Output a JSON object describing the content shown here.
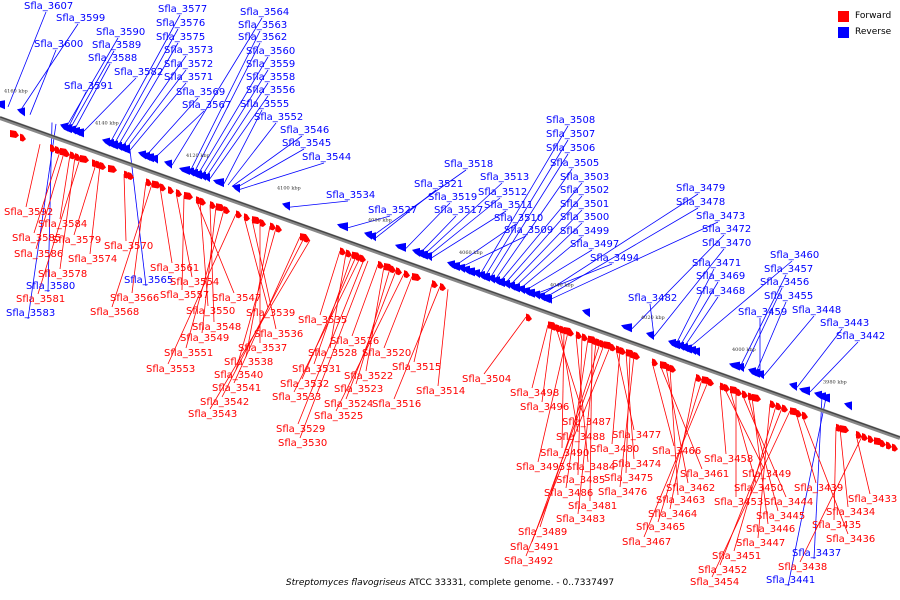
{
  "caption": {
    "organism": "Streptomyces flavogriseus",
    "rest": " ATCC 33331, complete genome. - 0..7337497"
  },
  "legend": {
    "forward_label": "Forward",
    "reverse_label": "Reverse",
    "forward_color": "#ff0000",
    "reverse_color": "#0000ff"
  },
  "ticks": [
    {
      "kbp": 4160,
      "label": "4160 kbp"
    },
    {
      "kbp": 4140,
      "label": "4140 kbp"
    },
    {
      "kbp": 4120,
      "label": "4120 kbp"
    },
    {
      "kbp": 4100,
      "label": "4100 kbp"
    },
    {
      "kbp": 4080,
      "label": "4080 kbp"
    },
    {
      "kbp": 4060,
      "label": "4060 kbp"
    },
    {
      "kbp": 4040,
      "label": "4040 kbp"
    },
    {
      "kbp": 4020,
      "label": "4020 kbp"
    },
    {
      "kbp": 4000,
      "label": "4000 kbp"
    },
    {
      "kbp": 3980,
      "label": "3980 kbp"
    }
  ],
  "reverse_genes": [
    "Sfla_3607",
    "Sfla_3599",
    "Sfla_3600",
    "Sfla_3590",
    "Sfla_3589",
    "Sfla_3588",
    "Sfla_3582",
    "Sfla_3591",
    "Sfla_3577",
    "Sfla_3576",
    "Sfla_3575",
    "Sfla_3573",
    "Sfla_3572",
    "Sfla_3571",
    "Sfla_3569",
    "Sfla_3567",
    "Sfla_3564",
    "Sfla_3563",
    "Sfla_3562",
    "Sfla_3560",
    "Sfla_3559",
    "Sfla_3558",
    "Sfla_3556",
    "Sfla_3555",
    "Sfla_3552",
    "Sfla_3546",
    "Sfla_3545",
    "Sfla_3544",
    "Sfla_3534",
    "Sfla_3527",
    "Sfla_3518",
    "Sfla_3521",
    "Sfla_3519",
    "Sfla_3517",
    "Sfla_3513",
    "Sfla_3512",
    "Sfla_3511",
    "Sfla_3510",
    "Sfla_3509",
    "Sfla_3508",
    "Sfla_3507",
    "Sfla_3506",
    "Sfla_3505",
    "Sfla_3503",
    "Sfla_3502",
    "Sfla_3501",
    "Sfla_3500",
    "Sfla_3499",
    "Sfla_3497",
    "Sfla_3494",
    "Sfla_3479",
    "Sfla_3478",
    "Sfla_3473",
    "Sfla_3472",
    "Sfla_3470",
    "Sfla_3471",
    "Sfla_3469",
    "Sfla_3468",
    "Sfla_3482",
    "Sfla_3460",
    "Sfla_3457",
    "Sfla_3456",
    "Sfla_3455",
    "Sfla_3459",
    "Sfla_3448",
    "Sfla_3443",
    "Sfla_3442",
    "Sfla_3437",
    "Sfla_3441",
    "Sfla_3580",
    "Sfla_3583",
    "Sfla_3565"
  ],
  "forward_genes": [
    "Sfla_3592",
    "Sfla_3584",
    "Sfla_3585",
    "Sfla_3579",
    "Sfla_3574",
    "Sfla_3586",
    "Sfla_3578",
    "Sfla_3581",
    "Sfla_3570",
    "Sfla_3566",
    "Sfla_3568",
    "Sfla_3561",
    "Sfla_3554",
    "Sfla_3557",
    "Sfla_3547",
    "Sfla_3550",
    "Sfla_3548",
    "Sfla_3549",
    "Sfla_3551",
    "Sfla_3553",
    "Sfla_3539",
    "Sfla_3536",
    "Sfla_3537",
    "Sfla_3538",
    "Sfla_3540",
    "Sfla_3541",
    "Sfla_3542",
    "Sfla_3543",
    "Sfla_3535",
    "Sfla_3528",
    "Sfla_3531",
    "Sfla_3532",
    "Sfla_3533",
    "Sfla_3529",
    "Sfla_3530",
    "Sfla_3526",
    "Sfla_3522",
    "Sfla_3523",
    "Sfla_3524",
    "Sfla_3525",
    "Sfla_3520",
    "Sfla_3515",
    "Sfla_3516",
    "Sfla_3514",
    "Sfla_3504",
    "Sfla_3498",
    "Sfla_3496",
    "Sfla_3487",
    "Sfla_3488",
    "Sfla_3490",
    "Sfla_3495",
    "Sfla_3484",
    "Sfla_3485",
    "Sfla_3486",
    "Sfla_3481",
    "Sfla_3483",
    "Sfla_3489",
    "Sfla_3491",
    "Sfla_3492",
    "Sfla_3477",
    "Sfla_3480",
    "Sfla_3474",
    "Sfla_3475",
    "Sfla_3476",
    "Sfla_3466",
    "Sfla_3461",
    "Sfla_3462",
    "Sfla_3463",
    "Sfla_3464",
    "Sfla_3465",
    "Sfla_3467",
    "Sfla_3458",
    "Sfla_3449",
    "Sfla_3450",
    "Sfla_3453",
    "Sfla_3444",
    "Sfla_3445",
    "Sfla_3446",
    "Sfla_3447",
    "Sfla_3451",
    "Sfla_3452",
    "Sfla_3454",
    "Sfla_3439",
    "Sfla_3436",
    "Sfla_3435",
    "Sfla_3434",
    "Sfla_3433",
    "Sfla_3438"
  ]
}
